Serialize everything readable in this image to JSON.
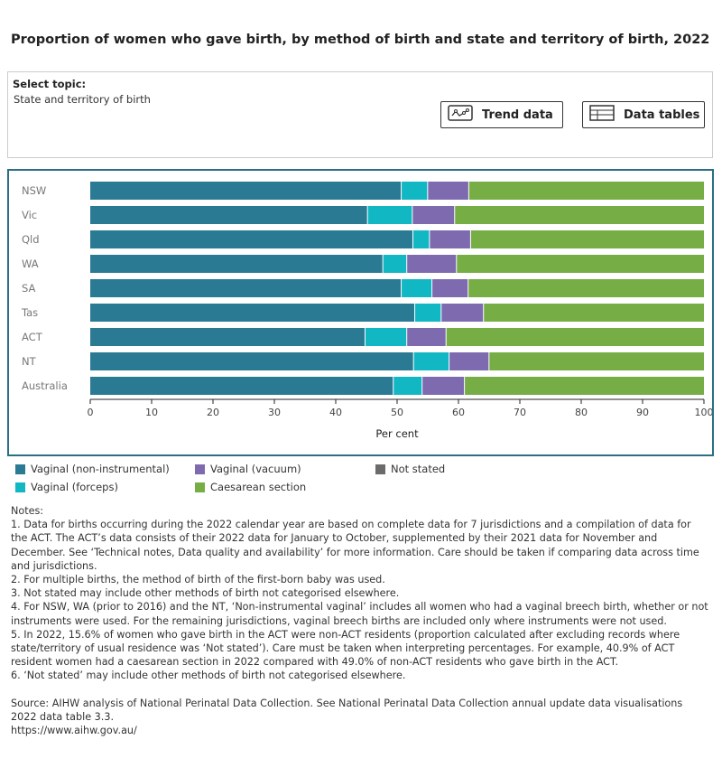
{
  "title": "Proportion of women who gave birth, by method of birth and state and territory of birth, 2022",
  "topic": {
    "label": "Select topic:",
    "value": "State and territory of birth"
  },
  "buttons": {
    "trend": "Trend data",
    "tables": "Data tables"
  },
  "colors": {
    "vaginal_non_instrumental": "#2a7a94",
    "vaginal_forceps": "#12b7c4",
    "vaginal_vacuum": "#7e6aaf",
    "not_stated": "#6b6b6b",
    "caesarean": "#77ad45"
  },
  "chart_data": {
    "type": "bar",
    "orientation": "horizontal",
    "stacked": true,
    "categories": [
      "NSW",
      "Vic",
      "Qld",
      "WA",
      "SA",
      "Tas",
      "ACT",
      "NT",
      "Australia"
    ],
    "series": [
      {
        "name": "Vaginal (non-instrumental)",
        "values": [
          50.6,
          45.1,
          52.5,
          47.6,
          50.6,
          52.8,
          44.7,
          52.6,
          49.3
        ]
      },
      {
        "name": "Vaginal (forceps)",
        "values": [
          4.3,
          7.3,
          2.7,
          3.9,
          5.0,
          4.3,
          6.8,
          5.8,
          4.7
        ]
      },
      {
        "name": "Vaginal (vacuum)",
        "values": [
          6.7,
          6.9,
          6.7,
          8.1,
          5.9,
          6.9,
          6.4,
          6.5,
          6.9
        ]
      },
      {
        "name": "Not stated",
        "values": [
          0,
          0,
          0,
          0,
          0,
          0,
          0,
          0,
          0
        ]
      },
      {
        "name": "Caesarean section",
        "values": [
          38.4,
          40.7,
          38.1,
          40.4,
          38.5,
          36.0,
          42.1,
          35.1,
          39.1
        ]
      }
    ],
    "xlabel": "Per cent",
    "xlim": [
      0,
      100
    ],
    "xticks": [
      "0",
      "10",
      "20",
      "30",
      "40",
      "50",
      "60",
      "70",
      "80",
      "90",
      "100"
    ],
    "legend_position": "bottom"
  },
  "legend": [
    "Vaginal (non-instrumental)",
    "Vaginal (vacuum)",
    "Not stated",
    "Vaginal (forceps)",
    "Caesarean section"
  ],
  "notes": [
    "Notes:",
    "1. Data for births occurring during the 2022 calendar year are based on complete data for 7 jurisdictions and a compilation of data for the ACT. The ACT’s data consists of their 2022 data for January to October, supplemented by their 2021 data for November and December. See ‘Technical notes, Data quality and availability’ for more information. Care should be taken if comparing data across time and jurisdictions.",
    "2. For multiple births, the method of birth of the first-born baby was used.",
    "3. Not stated may include other methods of birth not categorised elsewhere.",
    "4. For NSW, WA (prior to 2016) and the NT, ‘Non-instrumental vaginal’ includes all women who had a vaginal breech birth, whether or not instruments were used. For the remaining jurisdictions, vaginal breech births are included only where instruments were not used.",
    "5. In 2022, 15.6% of women who gave birth in the ACT were non-ACT residents (proportion calculated after excluding records where state/territory of usual residence was ‘Not stated’). Care must be taken when interpreting percentages. For example, 40.9% of ACT resident women had a caesarean section in 2022 compared with 49.0% of non-ACT residents who gave birth in the ACT.",
    "6. ‘Not stated’ may include other methods of birth not categorised elsewhere."
  ],
  "source": "Source: AIHW analysis of National Perinatal Data Collection. See National Perinatal Data Collection annual update data visualisations 2022 data table 3.3.",
  "url": "https://www.aihw.gov.au/"
}
